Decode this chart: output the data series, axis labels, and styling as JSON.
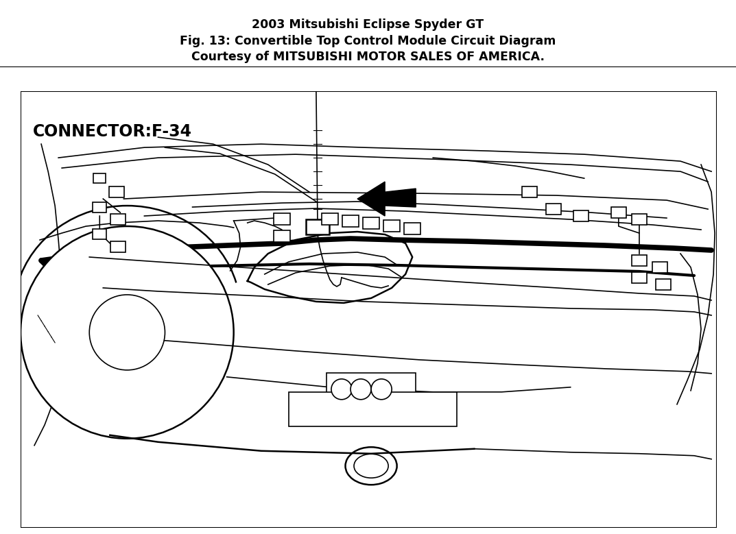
{
  "title_line1": "2003 Mitsubishi Eclipse Spyder GT",
  "title_line2": "Fig. 13: Convertible Top Control Module Circuit Diagram",
  "title_line3": "Courtesy of MITSUBISHI MOTOR SALES OF AMERICA.",
  "title_fontsize": 12.5,
  "title_color": "#000000",
  "bg_color": "#ffffff",
  "connector_label": "CONNECTOR:F-34",
  "fig_width": 10.73,
  "fig_height": 7.79
}
